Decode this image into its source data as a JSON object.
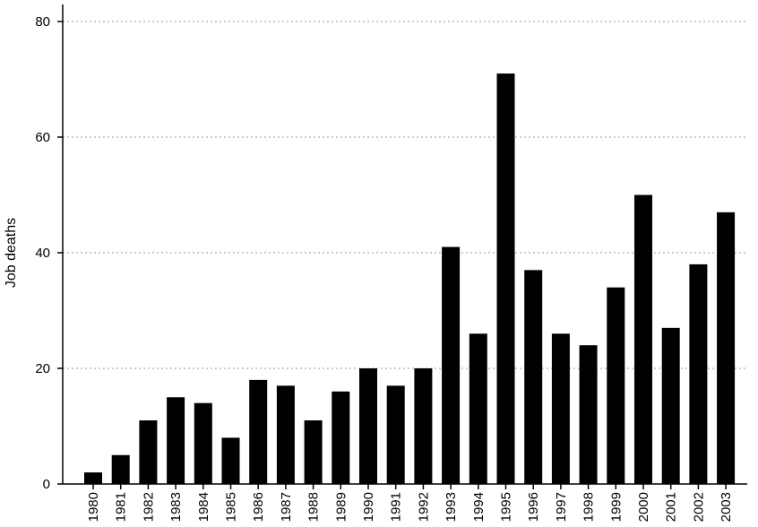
{
  "chart_data": {
    "type": "bar",
    "title": "",
    "xlabel": "",
    "ylabel": "Job deaths",
    "categories": [
      "1980",
      "1981",
      "1982",
      "1983",
      "1984",
      "1985",
      "1986",
      "1987",
      "1988",
      "1989",
      "1990",
      "1991",
      "1992",
      "1993",
      "1994",
      "1995",
      "1996",
      "1997",
      "1998",
      "1999",
      "2000",
      "2001",
      "2002",
      "2003"
    ],
    "values": [
      2,
      5,
      11,
      15,
      14,
      8,
      18,
      17,
      11,
      16,
      20,
      17,
      20,
      41,
      26,
      71,
      37,
      26,
      24,
      34,
      50,
      27,
      38,
      47
    ],
    "ylim": [
      0,
      80
    ],
    "yticks": [
      0,
      20,
      40,
      60,
      80
    ],
    "grid": "horizontal dotted",
    "legend": "none",
    "bar_color": "#000000"
  }
}
